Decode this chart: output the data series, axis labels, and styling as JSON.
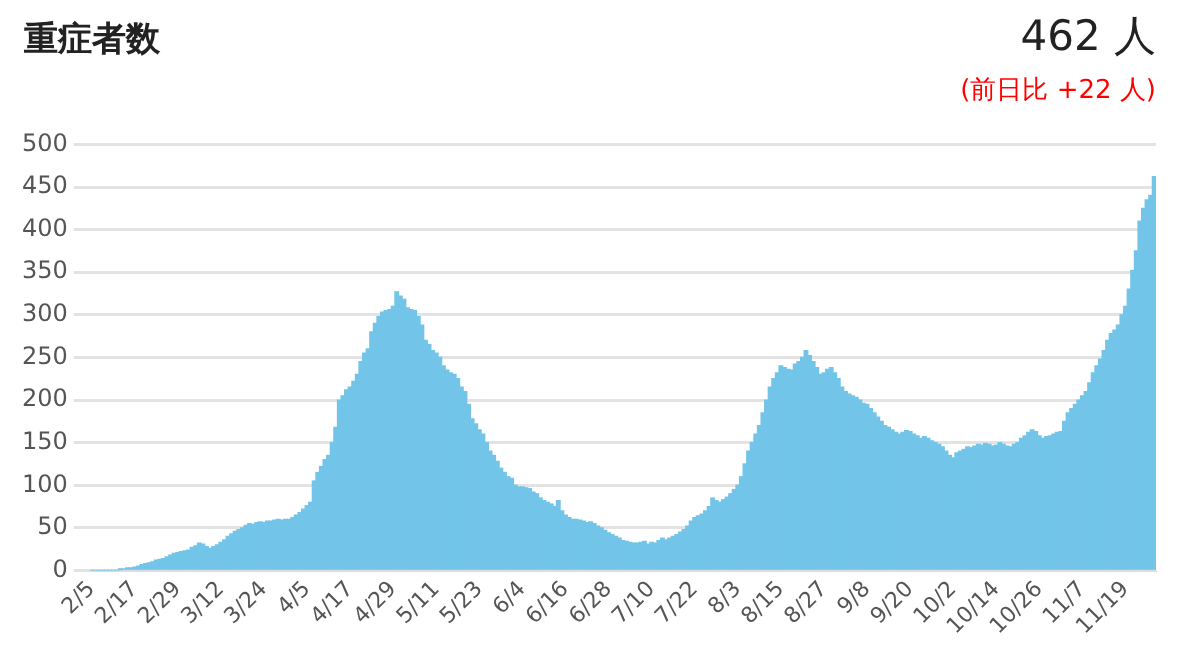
{
  "chart_data": {
    "type": "bar",
    "title": "重症者数",
    "annotations": [
      "462 人",
      "(前日比 +22 人)"
    ],
    "categories": [
      "2/5",
      null,
      null,
      null,
      null,
      null,
      null,
      null,
      null,
      null,
      null,
      null,
      "2/17",
      null,
      null,
      null,
      null,
      null,
      null,
      null,
      null,
      null,
      null,
      null,
      "2/29",
      null,
      null,
      null,
      null,
      null,
      null,
      null,
      null,
      null,
      null,
      null,
      "3/12",
      null,
      null,
      null,
      null,
      null,
      null,
      null,
      null,
      null,
      null,
      null,
      "3/24",
      null,
      null,
      null,
      null,
      null,
      null,
      null,
      null,
      null,
      null,
      null,
      "4/5",
      null,
      null,
      null,
      null,
      null,
      null,
      null,
      null,
      null,
      null,
      null,
      "4/17",
      null,
      null,
      null,
      null,
      null,
      null,
      null,
      null,
      null,
      null,
      null,
      "4/29",
      null,
      null,
      null,
      null,
      null,
      null,
      null,
      null,
      null,
      null,
      null,
      "5/11",
      null,
      null,
      null,
      null,
      null,
      null,
      null,
      null,
      null,
      null,
      null,
      "5/23",
      null,
      null,
      null,
      null,
      null,
      null,
      null,
      null,
      null,
      null,
      null,
      "6/4",
      null,
      null,
      null,
      null,
      null,
      null,
      null,
      null,
      null,
      null,
      null,
      "6/16",
      null,
      null,
      null,
      null,
      null,
      null,
      null,
      null,
      null,
      null,
      null,
      "6/28",
      null,
      null,
      null,
      null,
      null,
      null,
      null,
      null,
      null,
      null,
      null,
      "7/10",
      null,
      null,
      null,
      null,
      null,
      null,
      null,
      null,
      null,
      null,
      null,
      "7/22",
      null,
      null,
      null,
      null,
      null,
      null,
      null,
      null,
      null,
      null,
      null,
      "8/3",
      null,
      null,
      null,
      null,
      null,
      null,
      null,
      null,
      null,
      null,
      null,
      "8/15",
      null,
      null,
      null,
      null,
      null,
      null,
      null,
      null,
      null,
      null,
      null,
      "8/27",
      null,
      null,
      null,
      null,
      null,
      null,
      null,
      null,
      null,
      null,
      null,
      "9/8",
      null,
      null,
      null,
      null,
      null,
      null,
      null,
      null,
      null,
      null,
      null,
      "9/20",
      null,
      null,
      null,
      null,
      null,
      null,
      null,
      null,
      null,
      null,
      null,
      "10/2",
      null,
      null,
      null,
      null,
      null,
      null,
      null,
      null,
      null,
      null,
      null,
      "10/14",
      null,
      null,
      null,
      null,
      null,
      null,
      null,
      null,
      null,
      null,
      null,
      "10/26",
      null,
      null,
      null,
      null,
      null,
      null,
      null,
      null,
      null,
      null,
      null,
      "11/7",
      null,
      null,
      null,
      null,
      null,
      null,
      null,
      null,
      null,
      null,
      null,
      "11/19",
      null,
      null,
      null,
      null,
      null,
      null,
      null,
      null
    ],
    "values": [
      0,
      0,
      0,
      0,
      0,
      0,
      0,
      0,
      1,
      2,
      3,
      3,
      4,
      5,
      7,
      8,
      9,
      10,
      12,
      13,
      14,
      16,
      18,
      20,
      21,
      22,
      23,
      24,
      27,
      29,
      32,
      31,
      28,
      26,
      28,
      30,
      33,
      36,
      40,
      43,
      46,
      48,
      50,
      53,
      55,
      54,
      56,
      57,
      56,
      58,
      58,
      59,
      60,
      59,
      60,
      60,
      62,
      65,
      68,
      72,
      76,
      80,
      105,
      115,
      122,
      130,
      135,
      150,
      168,
      200,
      205,
      212,
      215,
      222,
      230,
      245,
      255,
      260,
      280,
      290,
      298,
      303,
      305,
      306,
      310,
      327,
      322,
      318,
      308,
      306,
      305,
      298,
      288,
      270,
      265,
      258,
      255,
      250,
      240,
      235,
      232,
      230,
      225,
      215,
      210,
      195,
      178,
      172,
      165,
      160,
      150,
      140,
      135,
      128,
      120,
      115,
      110,
      108,
      100,
      98,
      98,
      97,
      96,
      92,
      90,
      85,
      82,
      80,
      78,
      75,
      82,
      70,
      65,
      62,
      60,
      60,
      59,
      58,
      56,
      57,
      55,
      52,
      50,
      47,
      44,
      42,
      40,
      38,
      35,
      34,
      33,
      32,
      32,
      33,
      34,
      31,
      33,
      32,
      35,
      38,
      36,
      38,
      40,
      42,
      45,
      48,
      52,
      58,
      62,
      64,
      66,
      70,
      75,
      85,
      82,
      80,
      83,
      86,
      90,
      95,
      100,
      110,
      125,
      140,
      150,
      160,
      170,
      185,
      200,
      215,
      225,
      232,
      240,
      238,
      236,
      235,
      242,
      245,
      250,
      258,
      252,
      245,
      238,
      230,
      232,
      236,
      238,
      232,
      225,
      215,
      210,
      207,
      205,
      203,
      200,
      196,
      195,
      190,
      185,
      180,
      175,
      170,
      168,
      165,
      162,
      160,
      162,
      164,
      163,
      160,
      158,
      155,
      157,
      155,
      152,
      150,
      148,
      145,
      140,
      135,
      132,
      138,
      140,
      142,
      145,
      144,
      146,
      148,
      147,
      149,
      148,
      146,
      147,
      150,
      148,
      146,
      145,
      148,
      150,
      155,
      158,
      162,
      165,
      163,
      158,
      155,
      157,
      158,
      160,
      162,
      163,
      175,
      185,
      190,
      195,
      200,
      205,
      210,
      220,
      232,
      240,
      248,
      258,
      270,
      278,
      282,
      288,
      300,
      310,
      330,
      352,
      375,
      410,
      425,
      435,
      440,
      462
    ],
    "color": "#72c5e8",
    "ylim": [
      0,
      500
    ],
    "yticks": [
      0,
      50,
      100,
      150,
      200,
      250,
      300,
      350,
      400,
      450,
      500
    ],
    "grid": "y",
    "legend": false
  }
}
